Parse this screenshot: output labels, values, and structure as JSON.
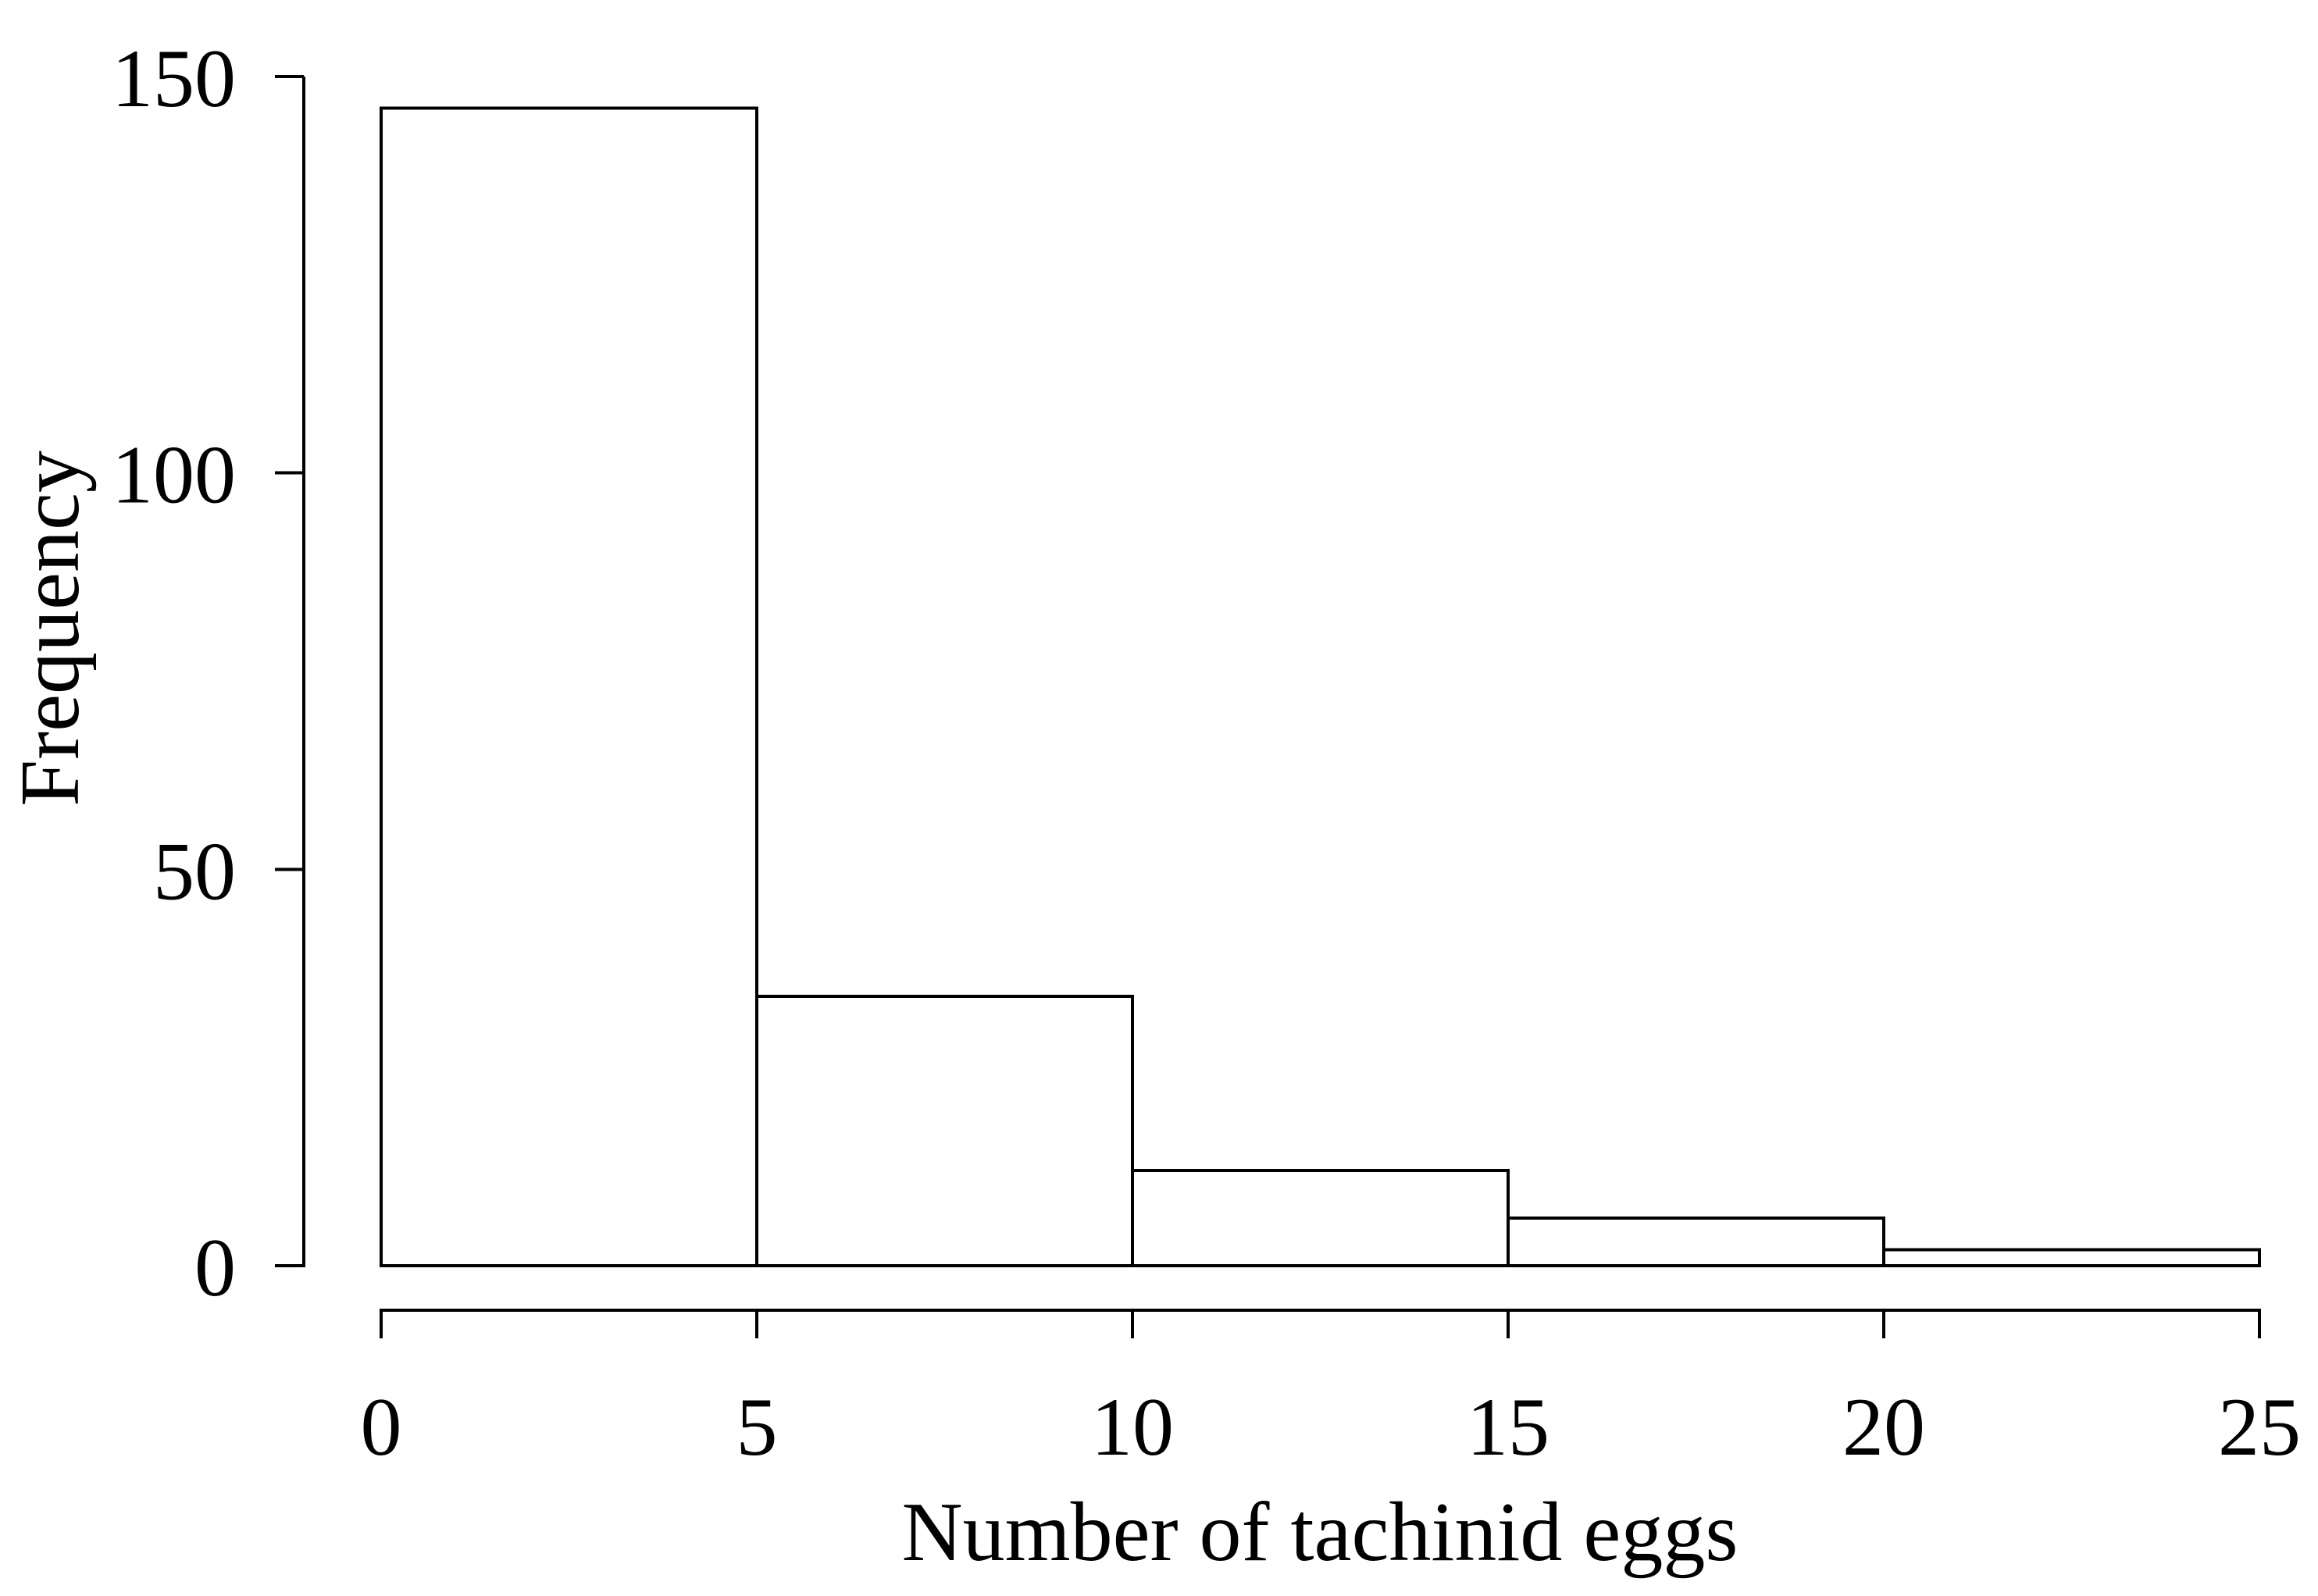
{
  "chart_data": {
    "type": "bar",
    "subtype": "histogram",
    "title": "",
    "xlabel": "Number of tachinid eggs",
    "ylabel": "Frequency",
    "bin_edges": [
      0,
      5,
      10,
      15,
      20,
      25
    ],
    "counts": [
      146,
      34,
      12,
      6,
      2
    ],
    "categories": [
      "0-5",
      "5-10",
      "10-15",
      "15-20",
      "20-25"
    ],
    "values": [
      146,
      34,
      12,
      6,
      2
    ],
    "x_ticks": [
      0,
      5,
      10,
      15,
      20,
      25
    ],
    "x_tick_labels": [
      "0",
      "5",
      "10",
      "15",
      "20",
      "25"
    ],
    "y_ticks": [
      0,
      50,
      100,
      150
    ],
    "y_tick_labels": [
      "0",
      "50",
      "100",
      "150"
    ],
    "xlim": [
      0,
      25
    ],
    "ylim": [
      0,
      150
    ],
    "grid": false,
    "legend": null,
    "style": {
      "background": "#ffffff",
      "bar_fill": "#ffffff",
      "bar_stroke": "#000000",
      "axis_color": "#000000",
      "text_color": "#000000"
    }
  }
}
